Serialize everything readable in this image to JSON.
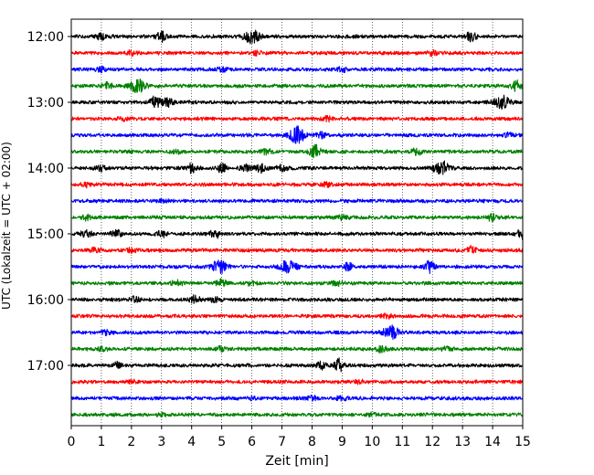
{
  "chart_data": {
    "type": "line",
    "title": "",
    "xlabel": "Zeit  [min]",
    "ylabel": "UTC (Lokalzeit = UTC + 02:00)",
    "xlim": [
      0,
      15
    ],
    "x_ticks": [
      0,
      1,
      2,
      3,
      4,
      5,
      6,
      7,
      8,
      9,
      10,
      11,
      12,
      13,
      14,
      15
    ],
    "y_tick_labels": [
      "12:00",
      "13:00",
      "14:00",
      "15:00",
      "16:00",
      "17:00"
    ],
    "trace_interval_min": 15,
    "grid": "vertical dotted lines at each minute",
    "legend": "none",
    "trace_color_cycle": [
      "#000000",
      "#ff0000",
      "#0000ff",
      "#008000"
    ],
    "series": [
      {
        "start": "12:00",
        "color": "#000000",
        "events": [
          [
            1.0,
            0.4
          ],
          [
            3.0,
            0.7
          ],
          [
            6.0,
            1.0
          ],
          [
            13.3,
            0.8
          ]
        ]
      },
      {
        "start": "12:15",
        "color": "#ff0000",
        "events": [
          [
            2.0,
            0.3
          ],
          [
            6.2,
            0.3
          ],
          [
            12.0,
            0.3
          ]
        ]
      },
      {
        "start": "12:30",
        "color": "#0000ff",
        "events": [
          [
            1.0,
            0.3
          ],
          [
            5.0,
            0.3
          ],
          [
            9.0,
            0.3
          ]
        ]
      },
      {
        "start": "12:45",
        "color": "#008000",
        "events": [
          [
            1.2,
            0.4
          ],
          [
            2.2,
            1.0
          ],
          [
            14.8,
            0.9
          ]
        ]
      },
      {
        "start": "13:00",
        "color": "#000000",
        "events": [
          [
            2.8,
            0.9
          ],
          [
            3.2,
            0.6
          ],
          [
            14.3,
            1.0
          ]
        ]
      },
      {
        "start": "13:15",
        "color": "#ff0000",
        "events": [
          [
            1.7,
            0.3
          ],
          [
            8.5,
            0.3
          ]
        ]
      },
      {
        "start": "13:30",
        "color": "#0000ff",
        "events": [
          [
            7.5,
            1.3
          ],
          [
            8.3,
            0.4
          ],
          [
            14.5,
            0.3
          ]
        ]
      },
      {
        "start": "13:45",
        "color": "#008000",
        "events": [
          [
            3.5,
            0.3
          ],
          [
            6.5,
            0.4
          ],
          [
            8.1,
            0.9
          ],
          [
            11.5,
            0.5
          ]
        ]
      },
      {
        "start": "14:00",
        "color": "#000000",
        "events": [
          [
            1.0,
            0.4
          ],
          [
            4.0,
            0.6
          ],
          [
            5.0,
            0.6
          ],
          [
            5.8,
            0.5
          ],
          [
            6.3,
            0.6
          ],
          [
            7.0,
            0.4
          ],
          [
            12.3,
            1.1
          ]
        ]
      },
      {
        "start": "14:15",
        "color": "#ff0000",
        "events": [
          [
            0.5,
            0.3
          ],
          [
            8.5,
            0.3
          ]
        ]
      },
      {
        "start": "14:30",
        "color": "#0000ff",
        "events": [
          [
            3.0,
            0.2
          ]
        ]
      },
      {
        "start": "14:45",
        "color": "#008000",
        "events": [
          [
            0.5,
            0.3
          ],
          [
            9.0,
            0.3
          ],
          [
            14.0,
            0.5
          ]
        ]
      },
      {
        "start": "15:00",
        "color": "#000000",
        "events": [
          [
            0.5,
            0.6
          ],
          [
            1.5,
            0.5
          ],
          [
            3.0,
            0.4
          ],
          [
            4.8,
            0.6
          ],
          [
            15.0,
            0.8
          ]
        ]
      },
      {
        "start": "15:15",
        "color": "#ff0000",
        "events": [
          [
            0.8,
            0.4
          ],
          [
            2.0,
            0.3
          ],
          [
            13.3,
            0.5
          ]
        ]
      },
      {
        "start": "15:30",
        "color": "#0000ff",
        "events": [
          [
            4.9,
            1.0
          ],
          [
            7.2,
            1.0
          ],
          [
            9.2,
            0.5
          ],
          [
            11.9,
            0.8
          ]
        ]
      },
      {
        "start": "15:45",
        "color": "#008000",
        "events": [
          [
            3.5,
            0.4
          ],
          [
            5.0,
            0.6
          ],
          [
            6.0,
            0.3
          ],
          [
            8.8,
            0.3
          ]
        ]
      },
      {
        "start": "16:00",
        "color": "#000000",
        "events": [
          [
            2.1,
            0.4
          ],
          [
            4.1,
            0.5
          ],
          [
            4.8,
            0.3
          ]
        ]
      },
      {
        "start": "16:15",
        "color": "#ff0000",
        "events": [
          [
            10.5,
            0.3
          ]
        ]
      },
      {
        "start": "16:30",
        "color": "#0000ff",
        "events": [
          [
            1.2,
            0.3
          ],
          [
            10.6,
            1.0
          ]
        ]
      },
      {
        "start": "16:45",
        "color": "#008000",
        "events": [
          [
            1.0,
            0.3
          ],
          [
            5.0,
            0.3
          ],
          [
            10.3,
            0.4
          ],
          [
            12.5,
            0.3
          ]
        ]
      },
      {
        "start": "17:00",
        "color": "#000000",
        "events": [
          [
            1.5,
            0.4
          ],
          [
            8.3,
            0.5
          ],
          [
            8.9,
            0.9
          ]
        ]
      },
      {
        "start": "17:15",
        "color": "#ff0000",
        "events": [
          [
            2.0,
            0.2
          ],
          [
            9.6,
            0.2
          ]
        ]
      },
      {
        "start": "17:30",
        "color": "#0000ff",
        "events": [
          [
            6.0,
            0.2
          ],
          [
            8.0,
            0.3
          ],
          [
            9.0,
            0.3
          ]
        ]
      },
      {
        "start": "17:45",
        "color": "#008000",
        "events": [
          [
            3.0,
            0.2
          ],
          [
            10.0,
            0.2
          ]
        ]
      }
    ]
  }
}
